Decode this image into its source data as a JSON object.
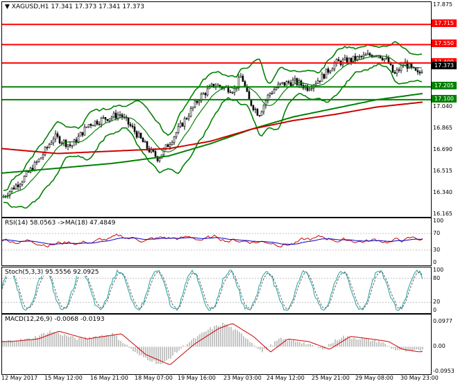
{
  "main": {
    "title": "XAGUSD,H1  17.341 17.373 17.341 17.373",
    "menu_symbol": "▼",
    "price_ticks": [
      "17.875",
      "17.715",
      "17.550",
      "17.400",
      "17.373",
      "17.205",
      "17.100",
      "17.040",
      "16.865",
      "16.690",
      "16.515",
      "16.340",
      "16.165"
    ],
    "levels": [
      {
        "label": "17.715",
        "color": "#ff0000"
      },
      {
        "label": "17.550",
        "color": "#ff0000"
      },
      {
        "label": "17.400",
        "color": "#ff0000"
      },
      {
        "label": "17.205",
        "color": "#008000"
      },
      {
        "label": "17.100",
        "color": "#008000"
      }
    ],
    "current_price": "17.373"
  },
  "rsi": {
    "title": "RSI(14) 58.0563  ->MA(18) 47.4849",
    "ticks": [
      "100",
      "70",
      "30",
      "0"
    ]
  },
  "stoch": {
    "title": "Stoch(5,3,3) 95.5556 92.0925",
    "ticks": [
      "100",
      "80",
      "20",
      "0"
    ]
  },
  "macd": {
    "title": "MACD(12,26,9) -0.0068 -0.0193",
    "ticks": [
      "0.0977",
      "0.00",
      "-0.0953"
    ]
  },
  "time_labels": [
    "12 May 2017",
    "15 May 12:00",
    "16 May 21:00",
    "18 May 07:00",
    "19 May 16:00",
    "23 May 03:00",
    "24 May 12:00",
    "25 May 21:00",
    "29 May 08:00",
    "30 May 23:00"
  ],
  "colors": {
    "candle": "#000000",
    "bollinger": "#008000",
    "ma_slow": "#cc0000",
    "rsi_line": "#cc0000",
    "rsi_ma": "#0000cc",
    "stoch_main": "#20a0a0",
    "macd_hist": "#b0b0b0",
    "macd_signal": "#cc0000"
  }
}
